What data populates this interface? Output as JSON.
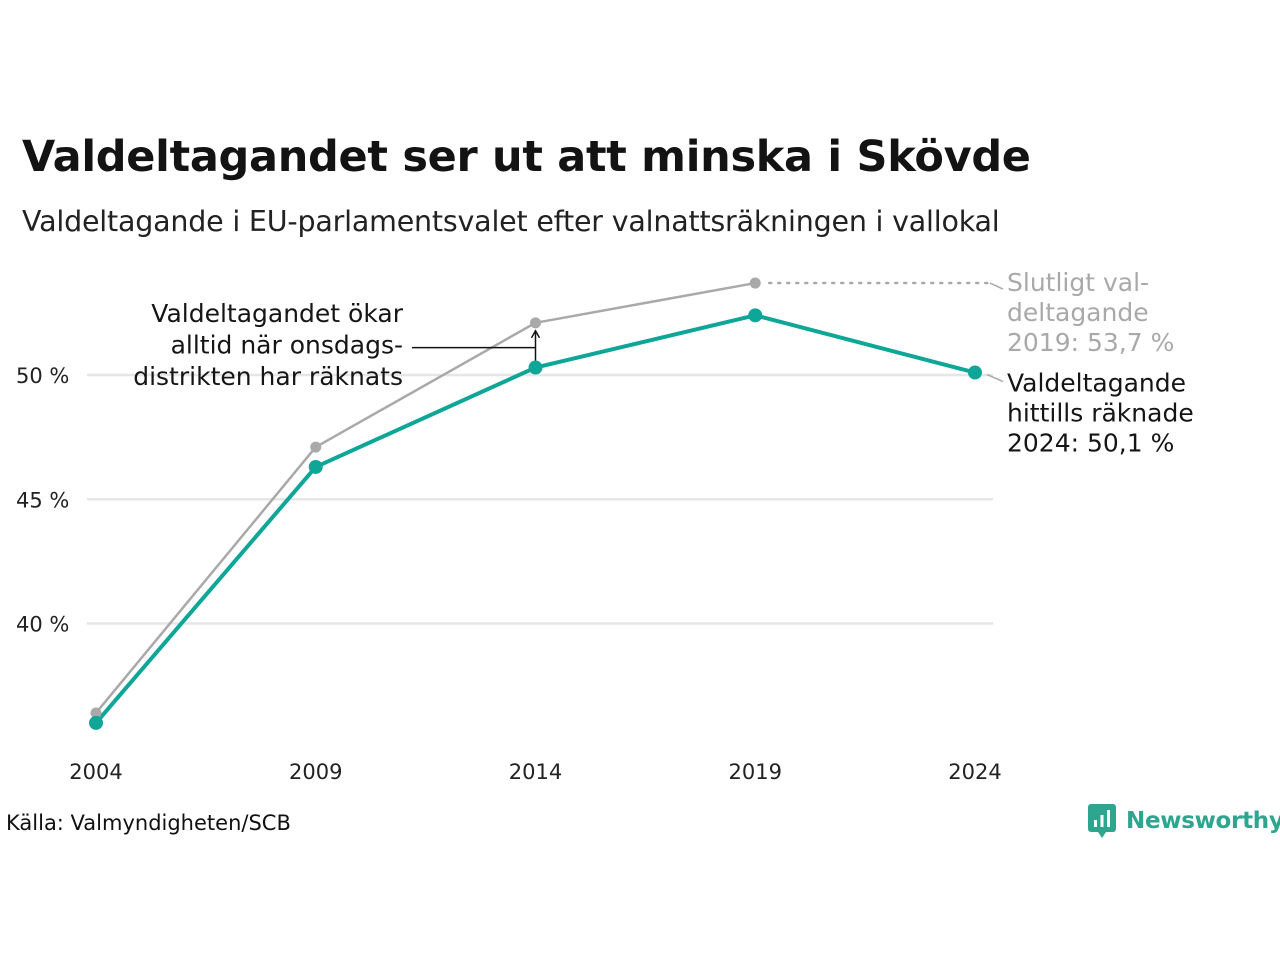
{
  "header": {
    "title": "Valdeltagandet ser ut att minska i Skövde",
    "subtitle": "Valdeltagande i EU-parlamentsvalet efter valnattsräkningen i vallokal"
  },
  "chart_data": {
    "type": "line",
    "x": [
      "2004",
      "2009",
      "2014",
      "2019",
      "2024"
    ],
    "series": [
      {
        "values": [
          36.4,
          47.1,
          52.1,
          53.7,
          null
        ],
        "color": "#a9a9a9"
      },
      {
        "values": [
          36.0,
          46.3,
          50.3,
          52.4,
          50.1
        ],
        "color": "#0ea697"
      }
    ],
    "y_ticks": [
      {
        "value": 40,
        "label": "40 %"
      },
      {
        "value": 45,
        "label": "45 %"
      },
      {
        "value": 50,
        "label": "50 %"
      }
    ],
    "grid": true,
    "annotations": {
      "left": [
        "Valdeltagandet ökar",
        "alltid när onsdags-",
        "distrikten har räknats"
      ],
      "gray_end": [
        "Slutligt val-",
        "deltagande",
        "2019: 53,7 %"
      ],
      "teal_end": [
        "Valdeltagande",
        "hittills räknade",
        "2024: 50,1 %"
      ]
    }
  },
  "footer": {
    "source": "Källa: Valmyndigheten/SCB",
    "brand": "Newsworthy"
  }
}
